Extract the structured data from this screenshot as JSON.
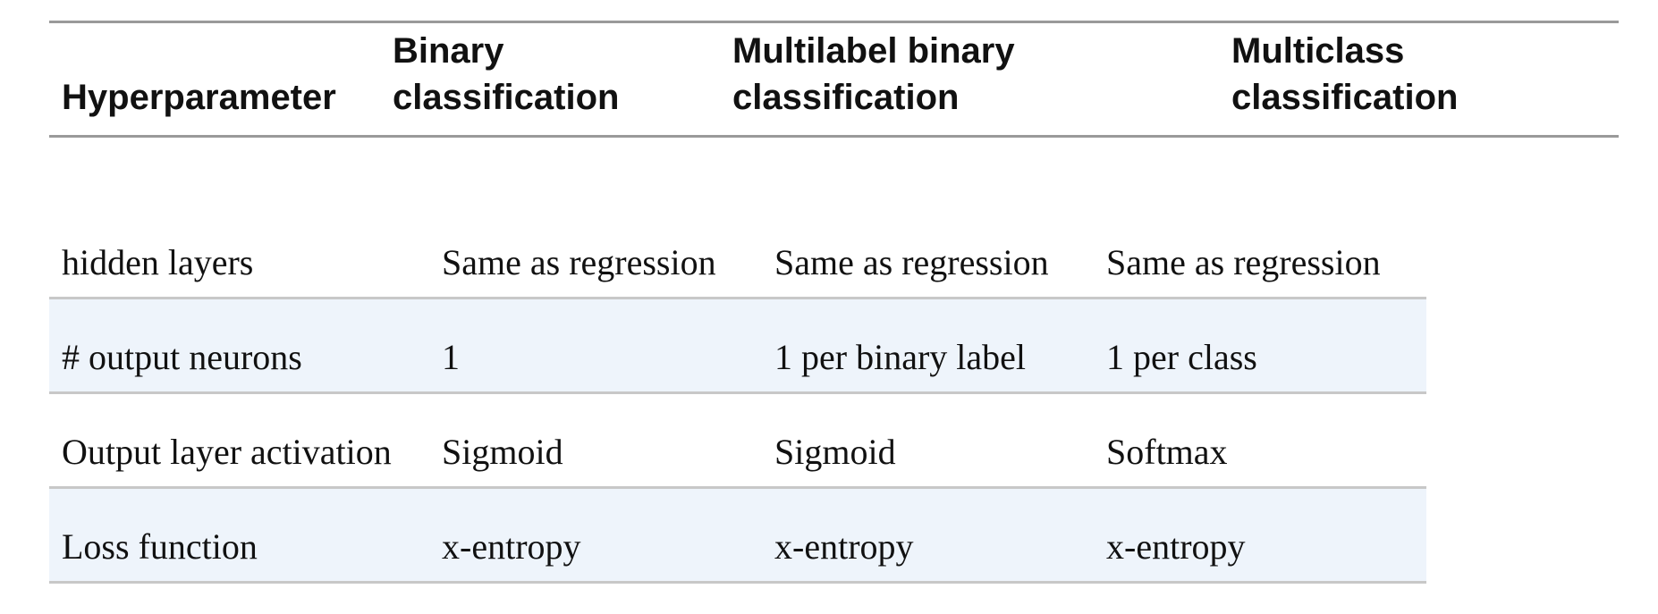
{
  "table": {
    "headers": [
      "Hyperparameter",
      "Binary\nclassification",
      "Multilabel binary\nclassification",
      "Multiclass\nclassification"
    ],
    "rows": [
      [
        "hidden layers",
        "Same as regression",
        "Same as regression",
        "Same as regression"
      ],
      [
        "# output neurons",
        "1",
        "1 per binary label",
        "1 per class"
      ],
      [
        "Output layer activation",
        "Sigmoid",
        "Sigmoid",
        "Softmax"
      ],
      [
        "Loss function",
        "x-entropy",
        "x-entropy",
        "x-entropy"
      ]
    ]
  },
  "colors": {
    "rule": "#9a9a9a",
    "row_rule": "#c8c8c8",
    "alt_row_bg": "#eef4fb",
    "text": "#111111"
  }
}
